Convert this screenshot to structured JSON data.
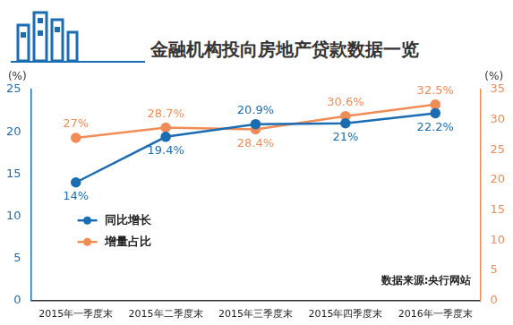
{
  "chart_data": {
    "type": "line",
    "title": "金融机构投向房地产贷款数据一览",
    "categories": [
      "2015年一季度末",
      "2015年二季度末",
      "2015年三季度末",
      "2015年四季度末",
      "2016年一季度末"
    ],
    "series": [
      {
        "name": "同比增长",
        "color": "#1a6db3",
        "axis": "y",
        "marker": "circle",
        "values": [
          14,
          19.4,
          20.9,
          21,
          22.2
        ],
        "value_labels": [
          "14%",
          "19.4%",
          "20.9%",
          "21%",
          "22.2%"
        ]
      },
      {
        "name": "增量占比",
        "color": "#f08c55",
        "axis": "y2",
        "marker": "circle",
        "values": [
          27,
          28.7,
          28.4,
          30.6,
          32.5
        ],
        "value_labels": [
          "27%",
          "28.7%",
          "28.4%",
          "30.6%",
          "32.5%"
        ]
      }
    ],
    "ylim": [
      0,
      25
    ],
    "yticks": [
      0,
      5,
      10,
      15,
      20,
      25
    ],
    "y2lim": [
      0,
      35
    ],
    "y2ticks": [
      0,
      5,
      10,
      15,
      20,
      25,
      30,
      35
    ],
    "y_label": "(%)",
    "y2_label": "(%)",
    "note": "数据来源:央行网站",
    "grid": false,
    "legend": "left",
    "data_labels": true
  }
}
